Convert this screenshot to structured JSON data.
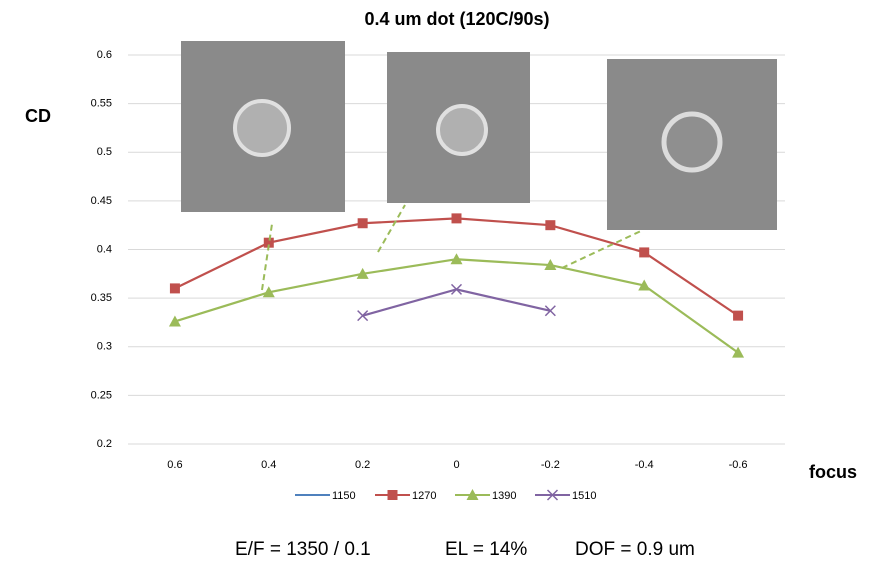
{
  "chart_data": {
    "type": "line",
    "title": "0.4 um dot (120C/90s)",
    "y_label": "CD",
    "x_label": "focus",
    "categories": [
      "0.6",
      "0.4",
      "0.2",
      "0",
      "-0.2",
      "-0.4",
      "-0.6"
    ],
    "series": [
      {
        "name": "1150",
        "color": "#4f81bd",
        "marker": "none",
        "values": [
          null,
          null,
          null,
          null,
          null,
          null,
          null
        ]
      },
      {
        "name": "1270",
        "color": "#c0504d",
        "marker": "square",
        "values": [
          0.36,
          0.407,
          0.427,
          0.432,
          0.425,
          0.397,
          0.332
        ]
      },
      {
        "name": "1390",
        "color": "#9bbb59",
        "marker": "triangle",
        "values": [
          0.326,
          0.356,
          0.375,
          0.39,
          0.384,
          0.363,
          0.294
        ]
      },
      {
        "name": "1510",
        "color": "#8064a2",
        "marker": "x",
        "values": [
          null,
          null,
          0.332,
          0.359,
          0.337,
          null,
          null
        ]
      }
    ],
    "ylim": [
      0.2,
      0.6
    ],
    "yticks": [
      0.2,
      0.25,
      0.3,
      0.35,
      0.4,
      0.45,
      0.5,
      0.55,
      0.6
    ],
    "grid": true,
    "legend": "bottom",
    "annotations": [
      "E/F =  1350 / 0.1",
      "EL =  14%",
      "DOF =  0.9 um"
    ]
  }
}
